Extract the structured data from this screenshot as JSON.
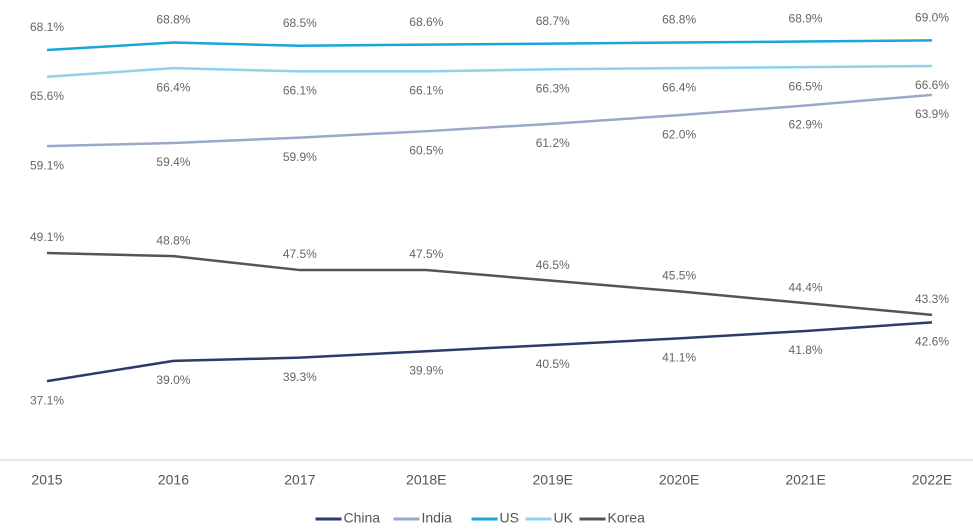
{
  "chart_data": {
    "type": "line",
    "categories": [
      "2015",
      "2016",
      "2017",
      "2018E",
      "2019E",
      "2020E",
      "2021E",
      "2022E"
    ],
    "ylim": [
      30,
      72.5
    ],
    "series": [
      {
        "name": "China",
        "color": "#2e3a6e",
        "values": [
          37.1,
          39.0,
          39.3,
          39.9,
          40.5,
          41.1,
          41.8,
          42.6
        ],
        "value_labels": [
          "37.1%",
          "39.0%",
          "39.3%",
          "39.9%",
          "40.5%",
          "41.1%",
          "41.8%",
          "42.6%"
        ]
      },
      {
        "name": "India",
        "color": "#9aa8cc",
        "values": [
          59.1,
          59.4,
          59.9,
          60.5,
          61.2,
          62.0,
          62.9,
          63.9
        ],
        "value_labels": [
          "59.1%",
          "59.4%",
          "59.9%",
          "60.5%",
          "61.2%",
          "62.0%",
          "62.9%",
          "63.9%"
        ]
      },
      {
        "name": "US",
        "color": "#1aa6d8",
        "values": [
          68.1,
          68.8,
          68.5,
          68.6,
          68.7,
          68.8,
          68.9,
          69.0
        ],
        "value_labels": [
          "68.1%",
          "68.8%",
          "68.5%",
          "68.6%",
          "68.7%",
          "68.8%",
          "68.9%",
          "69.0%"
        ]
      },
      {
        "name": "UK",
        "color": "#8fd3ea",
        "values": [
          65.6,
          66.4,
          66.1,
          66.1,
          66.3,
          66.4,
          66.5,
          66.6
        ],
        "value_labels": [
          "65.6%",
          "66.4%",
          "66.1%",
          "66.1%",
          "66.3%",
          "66.4%",
          "66.5%",
          "66.6%"
        ]
      },
      {
        "name": "Korea",
        "color": "#555555",
        "values": [
          49.1,
          48.8,
          47.5,
          47.5,
          46.5,
          45.5,
          44.4,
          43.3
        ],
        "value_labels": [
          "49.1%",
          "48.8%",
          "47.5%",
          "47.5%",
          "46.5%",
          "45.5%",
          "44.4%",
          "43.3%"
        ]
      }
    ]
  }
}
